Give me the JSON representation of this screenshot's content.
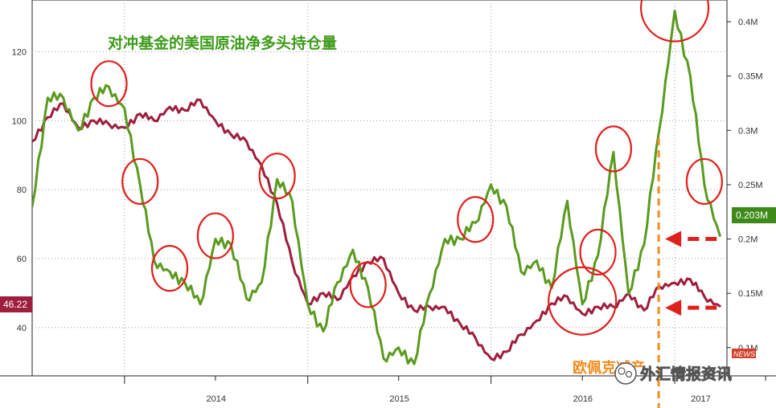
{
  "chart_data": {
    "type": "line",
    "title": "对冲基金的美国原油净多头持仓量",
    "x_ticks": [
      "2014",
      "2015",
      "2016",
      "2017"
    ],
    "left_axis": {
      "ticks": [
        40,
        60,
        80,
        100,
        120
      ],
      "range": [
        26,
        135
      ]
    },
    "right_axis": {
      "ticks": [
        "0.1M",
        "0.15M",
        "0.2M",
        "0.25M",
        "0.3M",
        "0.35M",
        "0.4M"
      ],
      "range": [
        0.074,
        0.42
      ]
    },
    "colors": {
      "oil_price": "#9e1e3c",
      "net_long": "#5a9a1e",
      "highlight": "#e0201c",
      "marker": "#f28c1c"
    },
    "last_value_labels": {
      "oil_price": "46.22",
      "net_long": "0.203M"
    },
    "annotation_text": "欧佩克减产",
    "watermark": "外汇情报资讯",
    "news_badge": "NEWS",
    "series": [
      {
        "name": "oil_price",
        "axis": "left",
        "x": [
          "2013-07",
          "2013-08",
          "2013-09",
          "2013-10",
          "2013-11",
          "2013-12",
          "2014-01",
          "2014-02",
          "2014-03",
          "2014-04",
          "2014-05",
          "2014-06",
          "2014-07",
          "2014-08",
          "2014-09",
          "2014-10",
          "2014-11",
          "2014-12",
          "2015-01",
          "2015-02",
          "2015-03",
          "2015-04",
          "2015-05",
          "2015-06",
          "2015-07",
          "2015-08",
          "2015-09",
          "2015-10",
          "2015-11",
          "2015-12",
          "2016-01",
          "2016-02",
          "2016-03",
          "2016-04",
          "2016-05",
          "2016-06",
          "2016-07",
          "2016-08",
          "2016-09",
          "2016-10",
          "2016-11",
          "2016-12",
          "2017-01",
          "2017-02",
          "2017-03",
          "2017-04"
        ],
        "y": [
          94,
          101,
          105,
          98,
          100,
          99,
          98,
          102,
          100,
          104,
          103,
          106,
          100,
          96,
          94,
          87,
          76,
          59,
          47,
          50,
          48,
          55,
          59,
          60,
          50,
          45,
          46,
          46,
          41,
          37,
          31,
          33,
          38,
          42,
          47,
          49,
          44,
          46,
          46,
          50,
          45,
          52,
          53,
          54,
          49,
          46.22
        ]
      },
      {
        "name": "net_long",
        "axis": "right",
        "x": [
          "2013-07",
          "2013-08",
          "2013-09",
          "2013-10",
          "2013-11",
          "2013-12",
          "2014-01",
          "2014-02",
          "2014-03",
          "2014-04",
          "2014-05",
          "2014-06",
          "2014-07",
          "2014-08",
          "2014-09",
          "2014-10",
          "2014-11",
          "2014-12",
          "2015-01",
          "2015-02",
          "2015-03",
          "2015-04",
          "2015-05",
          "2015-06",
          "2015-07",
          "2015-08",
          "2015-09",
          "2015-10",
          "2015-11",
          "2015-12",
          "2016-01",
          "2016-02",
          "2016-03",
          "2016-04",
          "2016-05",
          "2016-06",
          "2016-07",
          "2016-08",
          "2016-09",
          "2016-10",
          "2016-11",
          "2016-12",
          "2017-01",
          "2017-02",
          "2017-03",
          "2017-04"
        ],
        "y": [
          0.23,
          0.33,
          0.33,
          0.3,
          0.33,
          0.34,
          0.32,
          0.25,
          0.18,
          0.17,
          0.16,
          0.14,
          0.2,
          0.195,
          0.145,
          0.16,
          0.255,
          0.235,
          0.14,
          0.115,
          0.16,
          0.19,
          0.155,
          0.09,
          0.1,
          0.085,
          0.15,
          0.2,
          0.2,
          0.215,
          0.25,
          0.23,
          0.17,
          0.18,
          0.155,
          0.235,
          0.14,
          0.185,
          0.28,
          0.15,
          0.195,
          0.3,
          0.41,
          0.35,
          0.25,
          0.203
        ]
      }
    ]
  }
}
